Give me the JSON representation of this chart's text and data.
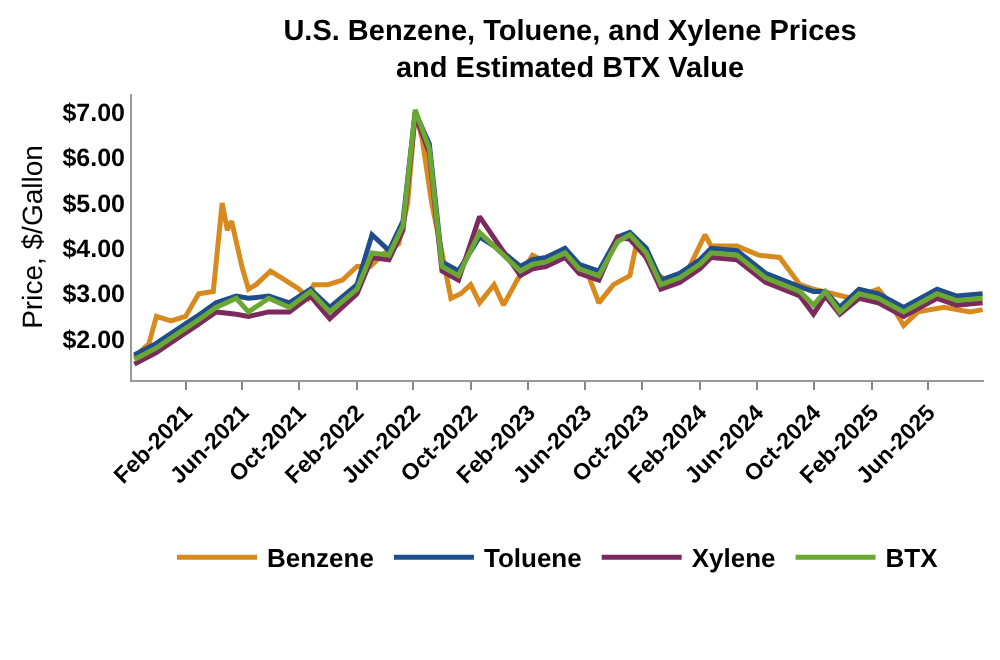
{
  "chart_data": {
    "type": "line",
    "title": "U.S. Benzene, Toluene, and Xylene Prices\nand Estimated BTX Value",
    "ylabel": "Price, $/Gallon",
    "xlim": [
      "2020-10-10",
      "2025-09-28"
    ],
    "xticks": [
      {
        "value": "2021-02-01",
        "label": "Feb-2021"
      },
      {
        "value": "2021-06-01",
        "label": "Jun-2021"
      },
      {
        "value": "2021-10-01",
        "label": "Oct-2021"
      },
      {
        "value": "2022-02-01",
        "label": "Feb-2022"
      },
      {
        "value": "2022-06-01",
        "label": "Jun-2022"
      },
      {
        "value": "2022-10-01",
        "label": "Oct-2022"
      },
      {
        "value": "2023-02-01",
        "label": "Feb-2023"
      },
      {
        "value": "2023-06-01",
        "label": "Jun-2023"
      },
      {
        "value": "2023-10-01",
        "label": "Oct-2023"
      },
      {
        "value": "2024-02-01",
        "label": "Feb-2024"
      },
      {
        "value": "2024-06-01",
        "label": "Jun-2024"
      },
      {
        "value": "2024-10-01",
        "label": "Oct-2024"
      },
      {
        "value": "2025-02-01",
        "label": "Feb-2025"
      },
      {
        "value": "2025-06-01",
        "label": "Jun-2025"
      }
    ],
    "ylim": [
      1.1,
      7.4
    ],
    "yticks": [
      {
        "value": 2,
        "label": "$2.00"
      },
      {
        "value": 3,
        "label": "$3.00"
      },
      {
        "value": 4,
        "label": "$4.00"
      },
      {
        "value": 5,
        "label": "$5.00"
      },
      {
        "value": 6,
        "label": "$6.00"
      },
      {
        "value": 7,
        "label": "$7.00"
      }
    ],
    "x": [
      "2020-10-15",
      "2020-11-30",
      "2021-01-12",
      "2021-02-25",
      "2021-04-07",
      "2021-05-20",
      "2021-06-15",
      "2021-07-28",
      "2021-09-10",
      "2021-10-25",
      "2021-12-05",
      "2022-02-01",
      "2022-03-05",
      "2022-04-10",
      "2022-05-10",
      "2022-06-05",
      "2022-07-05",
      "2022-08-01",
      "2022-09-05",
      "2022-10-20",
      "2022-12-05",
      "2023-01-15",
      "2023-02-10",
      "2023-03-10",
      "2023-04-20",
      "2023-05-20",
      "2023-07-01",
      "2023-08-10",
      "2023-09-05",
      "2023-10-10",
      "2023-11-10",
      "2023-12-20",
      "2024-02-01",
      "2024-02-25",
      "2024-04-20",
      "2024-06-20",
      "2024-09-01",
      "2024-09-30",
      "2024-10-25",
      "2024-11-25",
      "2025-01-05",
      "2025-02-15",
      "2025-04-10",
      "2025-06-20",
      "2025-08-01",
      "2025-09-25"
    ],
    "series": [
      {
        "name": "Benzene",
        "color": "#d98a1e",
        "x": [
          "2020-10-15",
          "2020-11-15",
          "2020-12-01",
          "2021-01-01",
          "2021-02-01",
          "2021-03-01",
          "2021-04-01",
          "2021-04-20",
          "2021-05-01",
          "2021-05-10",
          "2021-06-01",
          "2021-06-15",
          "2021-07-01",
          "2021-08-01",
          "2021-09-01",
          "2021-10-01",
          "2021-10-20",
          "2021-11-01",
          "2021-12-01",
          "2022-01-01",
          "2022-02-01",
          "2022-03-01",
          "2022-04-01",
          "2022-05-01",
          "2022-05-20",
          "2022-06-05",
          "2022-06-20",
          "2022-07-10",
          "2022-08-01",
          "2022-08-20",
          "2022-09-10",
          "2022-10-01",
          "2022-10-20",
          "2022-11-20",
          "2022-12-10",
          "2023-01-08",
          "2023-02-10",
          "2023-03-10",
          "2023-04-20",
          "2023-06-05",
          "2023-07-01",
          "2023-08-01",
          "2023-09-05",
          "2023-09-20",
          "2023-10-25",
          "2023-11-20",
          "2024-01-01",
          "2024-02-12",
          "2024-02-25",
          "2024-04-20",
          "2024-06-05",
          "2024-07-20",
          "2024-09-01",
          "2024-09-30",
          "2024-11-10",
          "2024-12-20",
          "2025-02-15",
          "2025-03-15",
          "2025-04-10",
          "2025-05-10",
          "2025-07-05",
          "2025-08-30",
          "2025-09-25"
        ],
        "values": [
          1.6,
          1.9,
          2.5,
          2.4,
          2.5,
          3.0,
          3.05,
          5.0,
          4.4,
          4.6,
          3.6,
          3.1,
          3.2,
          3.5,
          3.3,
          3.1,
          2.9,
          3.2,
          3.2,
          3.3,
          3.6,
          3.6,
          3.9,
          4.1,
          5.0,
          7.0,
          6.4,
          5.0,
          3.9,
          2.9,
          3.0,
          3.2,
          2.8,
          3.2,
          2.75,
          3.3,
          3.85,
          3.7,
          3.85,
          3.5,
          2.8,
          3.2,
          3.4,
          4.15,
          3.5,
          3.3,
          3.4,
          4.3,
          4.05,
          4.05,
          3.85,
          3.8,
          3.2,
          3.1,
          3.0,
          2.9,
          3.1,
          2.75,
          2.3,
          2.6,
          2.7,
          2.6,
          2.65
        ]
      },
      {
        "name": "Toluene",
        "color": "#1f4e8c",
        "values": [
          1.65,
          1.9,
          2.2,
          2.5,
          2.8,
          2.95,
          2.9,
          2.95,
          2.8,
          3.1,
          2.7,
          3.2,
          4.3,
          3.95,
          4.6,
          7.0,
          6.3,
          3.7,
          3.5,
          4.25,
          3.95,
          3.6,
          3.75,
          3.8,
          4.0,
          3.65,
          3.5,
          4.25,
          4.35,
          4.0,
          3.3,
          3.45,
          3.75,
          4.0,
          3.95,
          3.45,
          3.15,
          3.05,
          3.05,
          2.7,
          3.1,
          3.0,
          2.7,
          3.1,
          2.95,
          3.0
        ]
      },
      {
        "name": "Xylene",
        "color": "#7b2a5e",
        "values": [
          1.45,
          1.7,
          2.0,
          2.3,
          2.6,
          2.55,
          2.5,
          2.6,
          2.6,
          2.95,
          2.45,
          3.0,
          3.8,
          3.75,
          4.4,
          6.95,
          6.1,
          3.5,
          3.3,
          4.7,
          4.0,
          3.4,
          3.55,
          3.6,
          3.8,
          3.45,
          3.3,
          4.25,
          4.2,
          3.8,
          3.1,
          3.25,
          3.55,
          3.8,
          3.75,
          3.25,
          2.95,
          2.55,
          2.95,
          2.55,
          2.9,
          2.8,
          2.5,
          2.9,
          2.75,
          2.8
        ]
      },
      {
        "name": "BTX",
        "color": "#6aa833",
        "values": [
          1.55,
          1.8,
          2.1,
          2.4,
          2.7,
          2.9,
          2.6,
          2.9,
          2.7,
          3.05,
          2.6,
          3.1,
          3.9,
          3.85,
          4.5,
          7.05,
          6.2,
          3.6,
          3.4,
          4.35,
          3.9,
          3.5,
          3.65,
          3.7,
          3.9,
          3.55,
          3.4,
          4.15,
          4.3,
          3.9,
          3.2,
          3.35,
          3.65,
          3.9,
          3.85,
          3.35,
          3.05,
          2.75,
          3.05,
          2.6,
          3.0,
          2.9,
          2.6,
          3.0,
          2.85,
          2.9
        ]
      }
    ],
    "legend": "bottom",
    "grid": false,
    "marker": "none",
    "line_style": "solid"
  }
}
